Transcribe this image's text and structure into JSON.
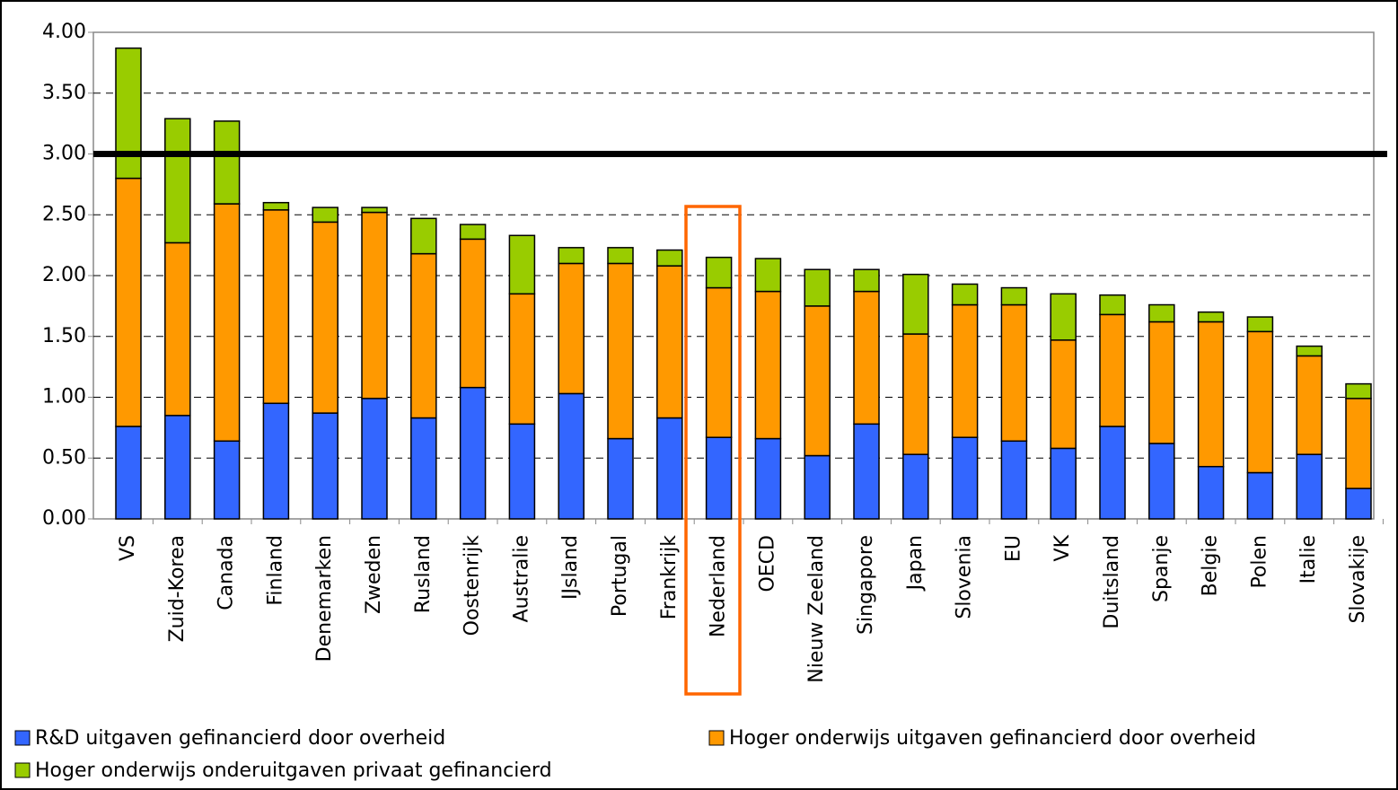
{
  "chart_data": {
    "type": "stacked_bar",
    "categories": [
      "VS",
      "Zuid-Korea",
      "Canada",
      "Finland",
      "Denemarken",
      "Zweden",
      "Rusland",
      "Oostenrijk",
      "Australie",
      "IJsland",
      "Portugal",
      "Frankrijk",
      "Nederland",
      "OECD",
      "Nieuw Zeeland",
      "Singapore",
      "Japan",
      "Slovenia",
      "EU",
      "VK",
      "Duitsland",
      "Spanje",
      "Belgie",
      "Polen",
      "Italie",
      "Slovakije"
    ],
    "series": [
      {
        "name": "R&D uitgaven gefinancierd door overheid",
        "color": "#3366ff",
        "values": [
          0.76,
          0.85,
          0.64,
          0.95,
          0.87,
          0.99,
          0.83,
          1.08,
          0.78,
          1.03,
          0.66,
          0.83,
          0.67,
          0.66,
          0.52,
          0.78,
          0.53,
          0.67,
          0.64,
          0.58,
          0.76,
          0.62,
          0.43,
          0.38,
          0.53,
          0.25
        ]
      },
      {
        "name": "Hoger onderwijs uitgaven gefinancierd door overheid",
        "color": "#ff9900",
        "values": [
          2.04,
          1.42,
          1.95,
          1.59,
          1.57,
          1.53,
          1.35,
          1.22,
          1.07,
          1.07,
          1.44,
          1.25,
          1.23,
          1.21,
          1.23,
          1.09,
          0.99,
          1.09,
          1.12,
          0.89,
          0.92,
          1.0,
          1.19,
          1.16,
          0.81,
          0.74
        ]
      },
      {
        "name": "Hoger onderwijs onderuitgaven privaat gefinancierd",
        "color": "#99cc00",
        "values": [
          1.07,
          1.02,
          0.68,
          0.06,
          0.12,
          0.04,
          0.29,
          0.12,
          0.48,
          0.13,
          0.13,
          0.13,
          0.25,
          0.27,
          0.3,
          0.18,
          0.49,
          0.17,
          0.14,
          0.38,
          0.16,
          0.14,
          0.08,
          0.12,
          0.08,
          0.12
        ]
      }
    ],
    "ylim": [
      0,
      4
    ],
    "yticks": [
      {
        "value": 0,
        "label": "0.00"
      },
      {
        "value": 0.5,
        "label": "0.50"
      },
      {
        "value": 1,
        "label": "1.00"
      },
      {
        "value": 1.5,
        "label": "1.50"
      },
      {
        "value": 2,
        "label": "2.00"
      },
      {
        "value": 2.5,
        "label": "2.50"
      },
      {
        "value": 3,
        "label": "3.00"
      },
      {
        "value": 3.5,
        "label": "3.50"
      },
      {
        "value": 4,
        "label": "4.00"
      }
    ],
    "grid": true,
    "reference_line": 3
  }
}
